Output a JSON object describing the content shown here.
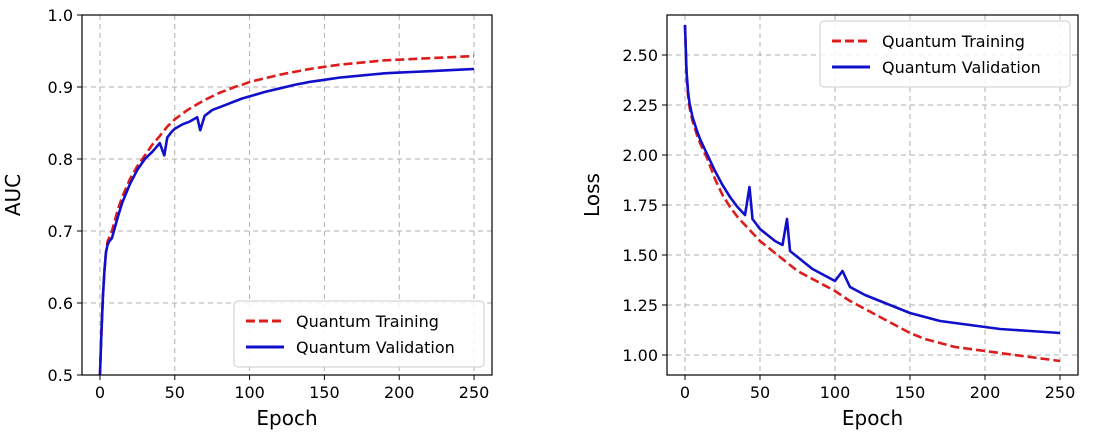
{
  "chart_data": [
    {
      "type": "line",
      "xlabel": "Epoch",
      "ylabel": "AUC",
      "xlim": [
        -12,
        262
      ],
      "ylim": [
        0.5,
        1.0
      ],
      "xticks": [
        0,
        50,
        100,
        150,
        200,
        250
      ],
      "yticks": [
        0.5,
        0.6,
        0.7,
        0.8,
        0.9,
        1.0
      ],
      "ytick_labels": [
        "0.5",
        "0.6",
        "0.7",
        "0.8",
        "0.9",
        "1.0"
      ],
      "grid": true,
      "legend": "lower-right",
      "series": [
        {
          "name": "Quantum Training",
          "color": "#dd1c1c",
          "style": "dashed",
          "x": [
            0,
            1,
            2,
            3,
            4,
            5,
            6,
            8,
            10,
            12,
            15,
            18,
            20,
            25,
            30,
            35,
            40,
            45,
            50,
            55,
            60,
            65,
            70,
            75,
            80,
            85,
            90,
            95,
            100,
            110,
            120,
            130,
            140,
            150,
            160,
            170,
            180,
            190,
            200,
            210,
            220,
            230,
            240,
            250
          ],
          "y": [
            0.5,
            0.56,
            0.61,
            0.645,
            0.67,
            0.685,
            0.69,
            0.7,
            0.715,
            0.73,
            0.748,
            0.762,
            0.772,
            0.79,
            0.805,
            0.82,
            0.832,
            0.845,
            0.855,
            0.863,
            0.87,
            0.876,
            0.882,
            0.887,
            0.892,
            0.896,
            0.9,
            0.903,
            0.907,
            0.912,
            0.917,
            0.921,
            0.925,
            0.928,
            0.931,
            0.933,
            0.935,
            0.937,
            0.938,
            0.939,
            0.94,
            0.941,
            0.942,
            0.943
          ]
        },
        {
          "name": "Quantum Validation",
          "color": "#1010cc",
          "style": "solid",
          "x": [
            0,
            1,
            2,
            3,
            4,
            5,
            6,
            8,
            10,
            12,
            15,
            18,
            20,
            25,
            30,
            35,
            40,
            43,
            45,
            48,
            50,
            55,
            60,
            65,
            67,
            70,
            75,
            80,
            85,
            90,
            95,
            100,
            110,
            120,
            130,
            140,
            150,
            160,
            170,
            180,
            190,
            200,
            210,
            220,
            230,
            240,
            250
          ],
          "y": [
            0.5,
            0.56,
            0.61,
            0.645,
            0.67,
            0.68,
            0.685,
            0.69,
            0.705,
            0.72,
            0.74,
            0.755,
            0.765,
            0.785,
            0.8,
            0.81,
            0.822,
            0.805,
            0.83,
            0.838,
            0.842,
            0.848,
            0.852,
            0.858,
            0.84,
            0.86,
            0.868,
            0.872,
            0.876,
            0.88,
            0.884,
            0.887,
            0.893,
            0.898,
            0.903,
            0.907,
            0.91,
            0.913,
            0.915,
            0.917,
            0.919,
            0.92,
            0.921,
            0.922,
            0.923,
            0.924,
            0.925
          ]
        }
      ]
    },
    {
      "type": "line",
      "xlabel": "Epoch",
      "ylabel": "Loss",
      "xlim": [
        -12,
        262
      ],
      "ylim": [
        0.9,
        2.7
      ],
      "xticks": [
        0,
        50,
        100,
        150,
        200,
        250
      ],
      "yticks": [
        1.0,
        1.25,
        1.5,
        1.75,
        2.0,
        2.25,
        2.5
      ],
      "ytick_labels": [
        "1.00",
        "1.25",
        "1.50",
        "1.75",
        "2.00",
        "2.25",
        "2.50"
      ],
      "grid": true,
      "legend": "top-right",
      "series": [
        {
          "name": "Quantum Training",
          "color": "#dd1c1c",
          "style": "dashed",
          "x": [
            0,
            1,
            2,
            3,
            5,
            8,
            10,
            15,
            20,
            25,
            30,
            35,
            40,
            45,
            50,
            55,
            60,
            65,
            70,
            75,
            80,
            85,
            90,
            95,
            100,
            110,
            120,
            130,
            140,
            150,
            160,
            170,
            180,
            190,
            200,
            210,
            220,
            230,
            240,
            250
          ],
          "y": [
            2.65,
            2.4,
            2.3,
            2.24,
            2.17,
            2.1,
            2.06,
            1.98,
            1.88,
            1.8,
            1.74,
            1.69,
            1.65,
            1.61,
            1.57,
            1.54,
            1.51,
            1.48,
            1.45,
            1.42,
            1.4,
            1.38,
            1.36,
            1.34,
            1.32,
            1.27,
            1.23,
            1.19,
            1.15,
            1.11,
            1.08,
            1.06,
            1.04,
            1.03,
            1.02,
            1.01,
            1.0,
            0.99,
            0.98,
            0.97
          ]
        },
        {
          "name": "Quantum Validation",
          "color": "#1010cc",
          "style": "solid",
          "x": [
            0,
            1,
            2,
            3,
            5,
            8,
            10,
            15,
            20,
            25,
            30,
            35,
            40,
            43,
            45,
            50,
            55,
            60,
            65,
            68,
            70,
            75,
            80,
            85,
            90,
            95,
            100,
            105,
            110,
            120,
            130,
            140,
            150,
            160,
            170,
            180,
            190,
            200,
            210,
            220,
            230,
            240,
            250
          ],
          "y": [
            2.65,
            2.42,
            2.32,
            2.26,
            2.19,
            2.12,
            2.08,
            2.0,
            1.92,
            1.85,
            1.79,
            1.74,
            1.7,
            1.84,
            1.68,
            1.63,
            1.6,
            1.57,
            1.55,
            1.68,
            1.52,
            1.49,
            1.46,
            1.43,
            1.41,
            1.39,
            1.37,
            1.42,
            1.34,
            1.3,
            1.27,
            1.24,
            1.21,
            1.19,
            1.17,
            1.16,
            1.15,
            1.14,
            1.13,
            1.125,
            1.12,
            1.115,
            1.11
          ]
        }
      ]
    }
  ]
}
